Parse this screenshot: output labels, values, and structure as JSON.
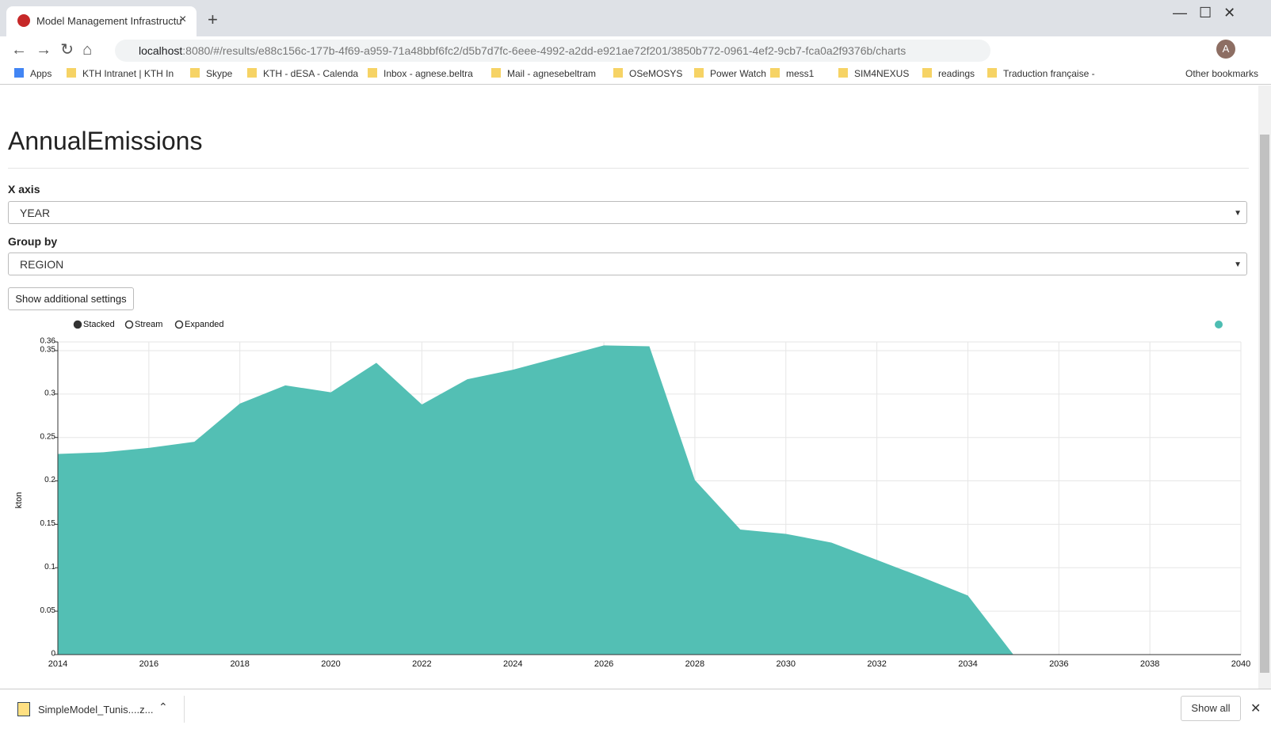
{
  "browser": {
    "tab_title": "Model Management Infrastructu",
    "url_host": "localhost",
    "url_rest": ":8080/#/results/e88c156c-177b-4f69-a959-71a48bbf6fc2/d5b7d7fc-6eee-4992-a2dd-e921ae72f201/3850b772-0961-4ef2-9cb7-fca0a2f9376b/charts",
    "bookmarks": [
      "Apps",
      "KTH Intranet | KTH In",
      "Skype",
      "KTH - dESA - Calenda",
      "Inbox - agnese.beltra",
      "Mail - agnesebeltram",
      "OSeMOSYS",
      "Power Watch",
      "mess1",
      "SIM4NEXUS",
      "readings",
      "Traduction française -"
    ],
    "other_bookmarks": "Other bookmarks",
    "download_file": "SimpleModel_Tunis....z...",
    "show_all": "Show all"
  },
  "page": {
    "title": "AnnualEmissions",
    "x_axis_label": "X axis",
    "x_axis_value": "YEAR",
    "group_by_label": "Group by",
    "group_by_value": "REGION",
    "settings_button": "Show additional settings",
    "chart_modes": [
      "Stacked",
      "Stream",
      "Expanded"
    ]
  },
  "chart_data": {
    "type": "area",
    "y_label": "kton",
    "x": [
      2014,
      2015,
      2016,
      2017,
      2018,
      2019,
      2020,
      2021,
      2022,
      2023,
      2024,
      2025,
      2026,
      2027,
      2028,
      2029,
      2030,
      2031,
      2032,
      2033,
      2034,
      2035
    ],
    "series": [
      {
        "color": "#4dbdb2",
        "values": [
          0.231,
          0.233,
          0.238,
          0.245,
          0.289,
          0.31,
          0.302,
          0.336,
          0.288,
          0.317,
          0.328,
          0.342,
          0.356,
          0.355,
          0.201,
          0.144,
          0.139,
          0.129,
          0.109,
          0.089,
          0.068,
          0
        ]
      }
    ],
    "xlim": [
      2014,
      2040
    ],
    "xticks": [
      2014,
      2016,
      2018,
      2020,
      2022,
      2024,
      2026,
      2028,
      2030,
      2032,
      2034,
      2036,
      2038,
      2040
    ],
    "ylim": [
      0,
      0.36
    ],
    "yticks": [
      0,
      0.05,
      0.1,
      0.15,
      0.2,
      0.25,
      0.3,
      0.35,
      0.36
    ],
    "grid": true
  }
}
